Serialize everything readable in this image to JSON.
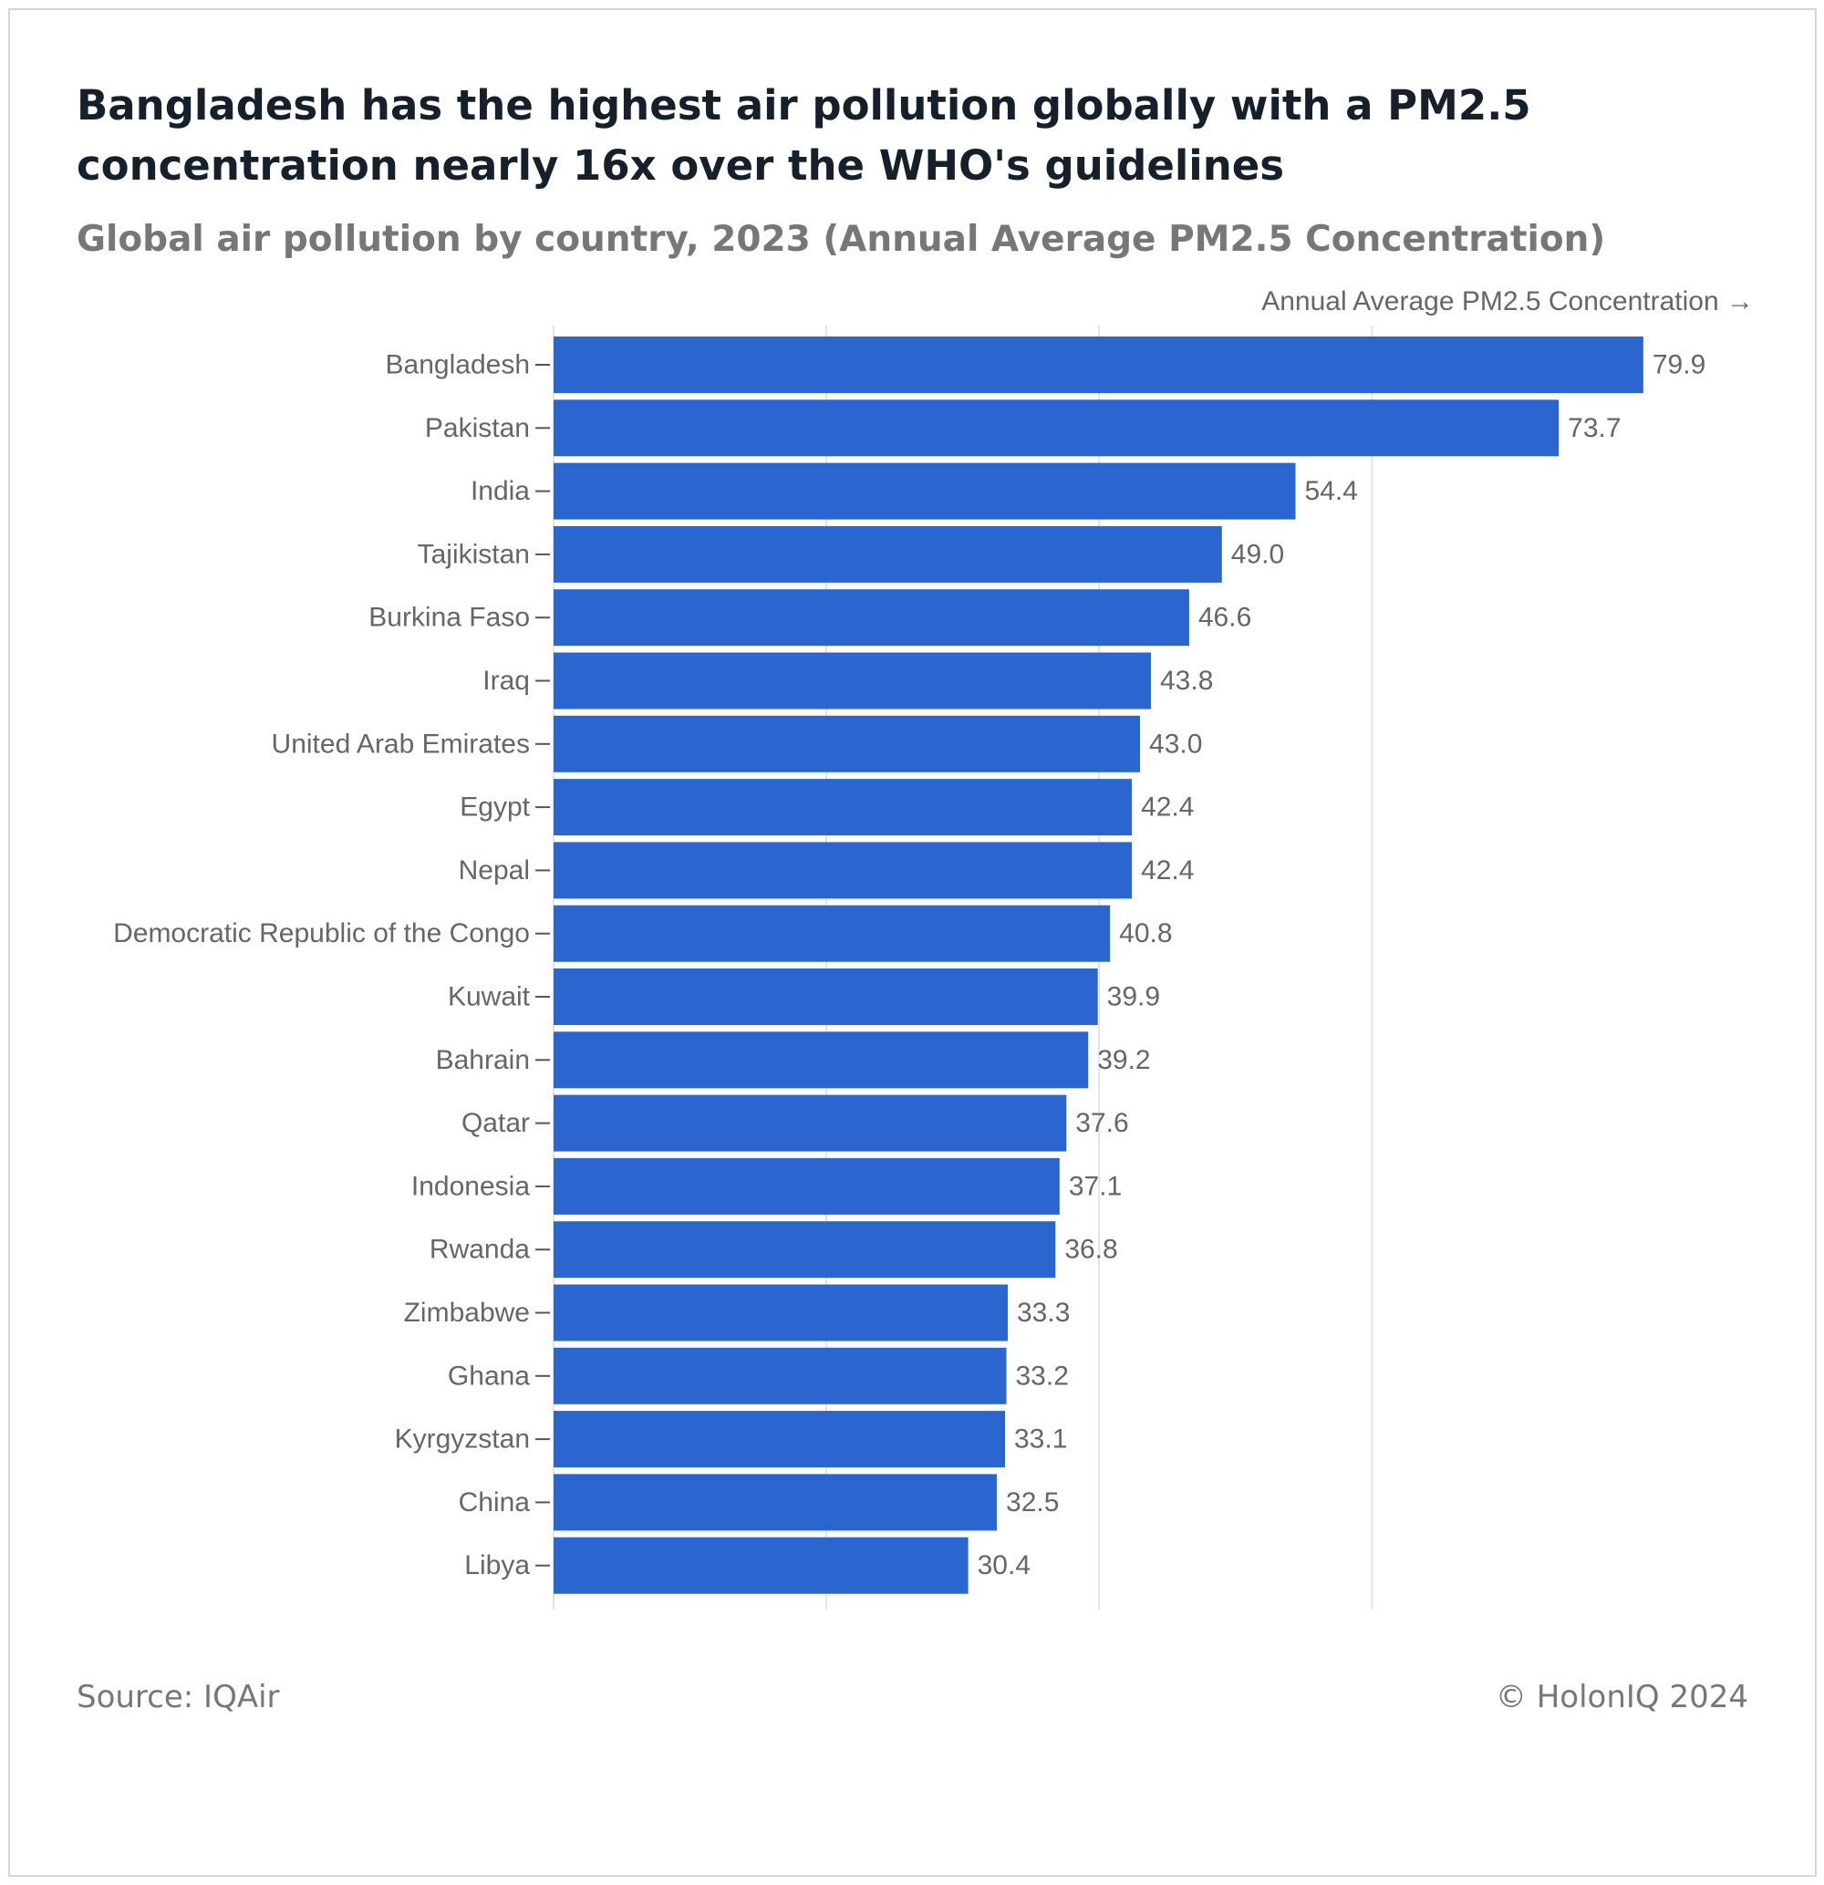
{
  "header": {
    "title": "Bangladesh has the highest air pollution globally with a PM2.5 concentration nearly 16x over the WHO's guidelines",
    "subtitle": "Global air pollution by country, 2023 (Annual Average PM2.5 Concentration)"
  },
  "footer": {
    "source": "Source: IQAir",
    "copyright": "© HolonIQ 2024"
  },
  "colors": {
    "bar": "#2b65cf",
    "label_text": "#666666",
    "grid": "#e4e4e4",
    "tick": "#555555"
  },
  "chart_data": {
    "type": "bar",
    "orientation": "horizontal",
    "title": "Bangladesh has the highest air pollution globally with a PM2.5 concentration nearly 16x over the WHO's guidelines",
    "subtitle": "Global air pollution by country, 2023 (Annual Average PM2.5 Concentration)",
    "xlabel": "Annual Average PM2.5 Concentration →",
    "ylabel": "",
    "xlim": [
      0,
      88
    ],
    "gridline_values": [
      0,
      20,
      40,
      60
    ],
    "grid": true,
    "legend": "none",
    "categories": [
      "Bangladesh",
      "Pakistan",
      "India",
      "Tajikistan",
      "Burkina Faso",
      "Iraq",
      "United Arab Emirates",
      "Egypt",
      "Nepal",
      "Democratic Republic of the Congo",
      "Kuwait",
      "Bahrain",
      "Qatar",
      "Indonesia",
      "Rwanda",
      "Zimbabwe",
      "Ghana",
      "Kyrgyzstan",
      "China",
      "Libya"
    ],
    "values": [
      79.9,
      73.7,
      54.4,
      49.0,
      46.6,
      43.8,
      43.0,
      42.4,
      42.4,
      40.8,
      39.9,
      39.2,
      37.6,
      37.1,
      36.8,
      33.3,
      33.2,
      33.1,
      32.5,
      30.4
    ],
    "value_labels": [
      "79.9",
      "73.7",
      "54.4",
      "49.0",
      "46.6",
      "43.8",
      "43.0",
      "42.4",
      "42.4",
      "40.8",
      "39.9",
      "39.2",
      "37.6",
      "37.1",
      "36.8",
      "33.3",
      "33.2",
      "33.1",
      "32.5",
      "30.4"
    ]
  }
}
